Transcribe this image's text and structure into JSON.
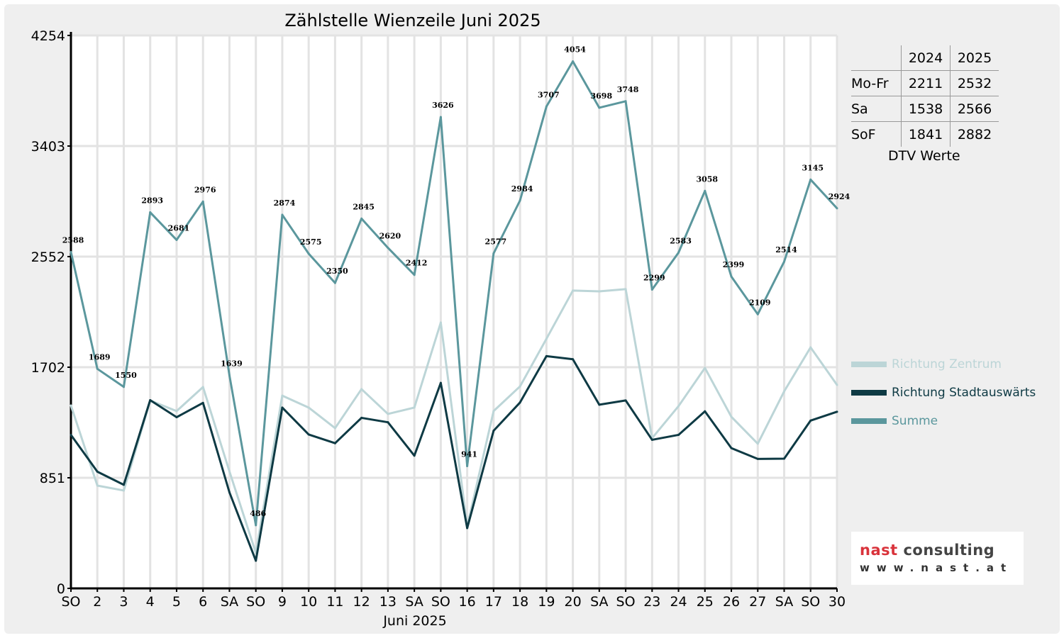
{
  "chart_data": {
    "type": "line",
    "title": "Zählstelle Wienzeile Juni 2025",
    "xlabel": "Juni 2025",
    "ylabel": "",
    "ylim": [
      0,
      4254
    ],
    "yticks": [
      "0",
      "851",
      "1702",
      "2552",
      "3403",
      "4254"
    ],
    "grid": true,
    "legend_position": "right",
    "categories": [
      "SO",
      "2",
      "3",
      "4",
      "5",
      "6",
      "SA",
      "SO",
      "9",
      "10",
      "11",
      "12",
      "13",
      "SA",
      "SO",
      "16",
      "17",
      "18",
      "19",
      "20",
      "SA",
      "SO",
      "23",
      "24",
      "25",
      "26",
      "27",
      "SA",
      "SO",
      "30"
    ],
    "holiday_flags": [
      1,
      0,
      0,
      0,
      0,
      0,
      0,
      1,
      1,
      0,
      0,
      0,
      0,
      0,
      1,
      0,
      0,
      0,
      1,
      0,
      0,
      1,
      0,
      0,
      0,
      0,
      0,
      0,
      1,
      0
    ],
    "series": [
      {
        "name": "Richtung Zentrum",
        "color": "#bcd5d7",
        "values": [
          1407,
          791,
          753,
          1445,
          1364,
          1549,
          900,
          273,
          1483,
          1391,
          1233,
          1533,
          1342,
          1391,
          2045,
          477,
          1364,
          1554,
          1920,
          2291,
          2285,
          2302,
          1156,
          1402,
          1696,
          1320,
          1113,
          1516,
          1854,
          1565
        ]
      },
      {
        "name": "Richtung Stadtauswärts",
        "color": "#0e3a44",
        "values": [
          1181,
          898,
          797,
          1448,
          1317,
          1427,
          739,
          213,
          1391,
          1184,
          1117,
          1312,
          1278,
          1021,
          1581,
          464,
          1213,
          1430,
          1787,
          1763,
          1413,
          1446,
          1143,
          1181,
          1362,
          1079,
          996,
          998,
          1291,
          1359
        ]
      },
      {
        "name": "Summe",
        "color": "#5b979d",
        "values": [
          2588,
          1689,
          1550,
          2893,
          2681,
          2976,
          1639,
          486,
          2874,
          2575,
          2350,
          2845,
          2620,
          2412,
          3626,
          941,
          2577,
          2984,
          3707,
          4054,
          3698,
          3748,
          2299,
          2583,
          3058,
          2399,
          2109,
          2514,
          3145,
          2924
        ],
        "labels": [
          "2588",
          "1689",
          "1550",
          "2893",
          "2681",
          "2976",
          "1639",
          "486",
          "2874",
          "2575",
          "2350",
          "2845",
          "2620",
          "2412",
          "3626",
          "941",
          "2577",
          "2984",
          "3707",
          "4054",
          "3698",
          "3748",
          "2299",
          "2583",
          "3058",
          "2399",
          "2109",
          "2514",
          "3145",
          "2924"
        ]
      }
    ],
    "colors": {
      "holiday": "#ff0000",
      "grid": "#e3e3e3"
    }
  },
  "dtv_table": {
    "caption": "DTV Werte",
    "headers": [
      "2024",
      "2025"
    ],
    "rows": [
      {
        "label": "Mo-Fr",
        "v2024": "2211",
        "v2025": "2532"
      },
      {
        "label": "Sa",
        "v2024": "1538",
        "v2025": "2566"
      },
      {
        "label": "SoF",
        "v2024": "1841",
        "v2025": "2882"
      }
    ]
  },
  "logo": {
    "name_red": "nast",
    "name_dark": "consulting",
    "url": "www.nast.at"
  }
}
